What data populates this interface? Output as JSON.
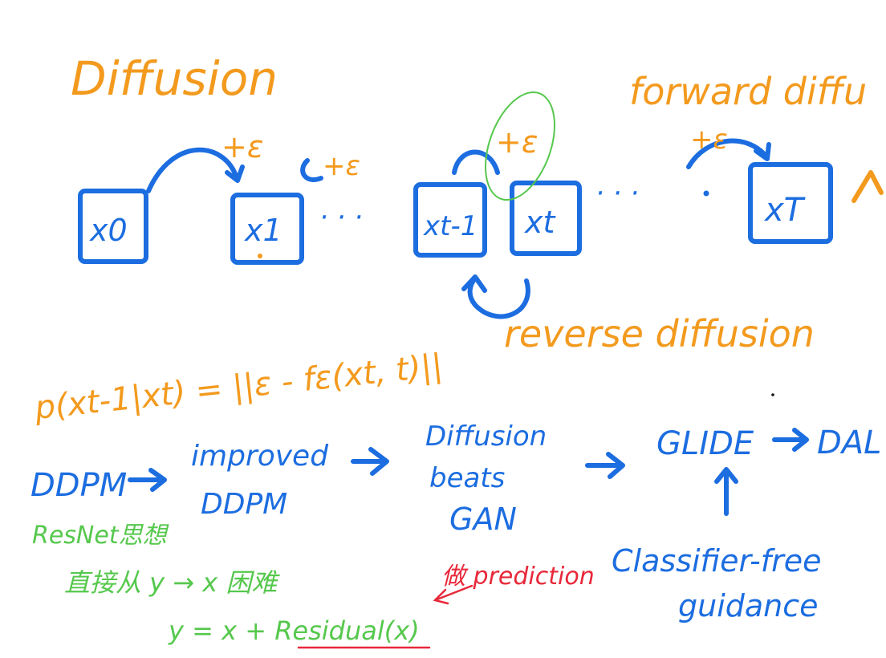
{
  "colors": {
    "orange": "#f39a1e",
    "blue": "#1c6de0",
    "green": "#56c84d",
    "red": "#e8283a"
  },
  "header": {
    "title": "Diffusion",
    "forward": "forward diffu",
    "reverse": "reverse diffusion"
  },
  "chain": {
    "nodes": [
      "x0",
      "x1",
      "xt-1",
      "xt",
      "xT"
    ],
    "noise": "+ε",
    "ellipsis": "· · ·"
  },
  "formula": "p(xt-1|xt) = ||ε - fε(xt, t)||",
  "timeline": {
    "ddpm": "DDPM",
    "improved_line1": "improved",
    "improved_line2": "DDPM",
    "beats_line1": "Diffusion",
    "beats_line2": "beats",
    "beats_line3": "GAN",
    "glide": "GLIDE",
    "dal": "DAL",
    "classifier_line1": "Classifier-free",
    "classifier_line2": "guidance"
  },
  "notes": {
    "resnet": "ResNet思想",
    "direct": "直接从 y → x 困难",
    "residual": "y = x + Residual(x)",
    "red_note": "做 prediction"
  }
}
